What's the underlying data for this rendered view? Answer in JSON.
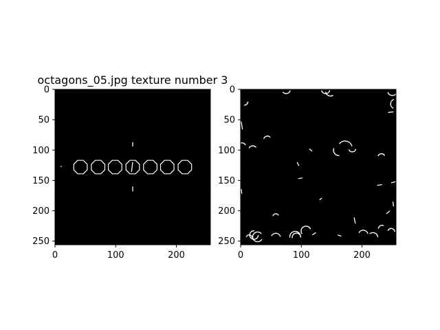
{
  "chart_data": [
    {
      "type": "image",
      "title": "octagons_05.jpg texture number 3",
      "xlim": [
        0,
        256
      ],
      "ylim": [
        256,
        0
      ],
      "xticks": [
        0,
        100,
        200
      ],
      "yticks": [
        0,
        50,
        100,
        150,
        200,
        250
      ],
      "background": "#000000",
      "foreground": "#ffffff",
      "octagons": [
        {
          "cx": 42,
          "cy": 128,
          "r": 12
        },
        {
          "cx": 71,
          "cy": 128,
          "r": 12
        },
        {
          "cx": 99,
          "cy": 128,
          "r": 12
        },
        {
          "cx": 128,
          "cy": 128,
          "r": 12
        },
        {
          "cx": 157,
          "cy": 128,
          "r": 12
        },
        {
          "cx": 185,
          "cy": 128,
          "r": 12
        },
        {
          "cx": 214,
          "cy": 128,
          "r": 12
        }
      ],
      "segments": [
        {
          "x1": 128,
          "y1": 87,
          "x2": 128,
          "y2": 94
        },
        {
          "x1": 128,
          "y1": 160,
          "x2": 128,
          "y2": 168
        },
        {
          "x1": 128,
          "y1": 120,
          "x2": 126,
          "y2": 136
        },
        {
          "x1": 9,
          "y1": 127,
          "x2": 11,
          "y2": 127
        }
      ]
    },
    {
      "type": "image",
      "title": "",
      "xlim": [
        0,
        256
      ],
      "ylim": [
        256,
        0
      ],
      "xticks": [
        0,
        100,
        200
      ],
      "yticks": [
        0,
        50,
        100,
        150,
        200,
        250
      ],
      "background": "#000000",
      "foreground": "#ffffff",
      "arcs": [
        [
          28,
          243,
          8,
          0.5,
          5.6
        ],
        [
          22,
          240,
          7,
          0,
          4.8
        ],
        [
          14,
          245,
          5,
          3.5,
          6.2
        ],
        [
          58,
          245,
          8,
          3.6,
          6.0
        ],
        [
          92,
          244,
          7,
          3.0,
          6.3
        ],
        [
          108,
          234,
          8,
          2.6,
          5.8
        ],
        [
          202,
          240,
          8,
          3.6,
          6.0
        ],
        [
          218,
          244,
          8,
          4.0,
          6.2
        ],
        [
          233,
          230,
          6,
          3.2,
          5.2
        ],
        [
          248,
          235,
          6,
          3.5,
          6.2
        ],
        [
          172,
          97,
          12,
          3.8,
          6.0
        ],
        [
          184,
          97,
          6,
          0.2,
          2.8
        ],
        [
          162,
          100,
          9,
          1.5,
          3.5
        ],
        [
          140,
          0,
          7,
          0.2,
          2.9
        ],
        [
          75,
          0,
          7,
          0.3,
          2.5
        ],
        [
          89,
          2,
          6,
          3.6,
          6.0
        ],
        [
          250,
          2,
          8,
          0.5,
          2.8
        ],
        [
          2,
          95,
          7,
          3.4,
          5.8
        ],
        [
          20,
          100,
          7,
          3.6,
          5.6
        ],
        [
          44,
          83,
          6,
          3.4,
          5.6
        ],
        [
          255,
          24,
          8,
          2.0,
          4.4
        ],
        [
          6,
          20,
          6,
          0.0,
          1.6
        ],
        [
          232,
          112,
          6,
          3.5,
          5.8
        ],
        [
          90,
          243,
          9,
          3.0,
          5.9
        ],
        [
          58,
          210,
          5,
          3.4,
          5.8
        ],
        [
          148,
          3,
          8,
          1.0,
          3.0
        ]
      ],
      "lines": [
        [
          95,
          147,
          102,
          146
        ],
        [
          225,
          158,
          233,
          157
        ],
        [
          243,
          38,
          252,
          37
        ],
        [
          248,
          154,
          255,
          152
        ],
        [
          187,
          211,
          189,
          221
        ],
        [
          1,
          53,
          3,
          66
        ],
        [
          1,
          164,
          2,
          172
        ],
        [
          251,
          185,
          252,
          193
        ],
        [
          93,
          120,
          96,
          126
        ],
        [
          118,
          240,
          124,
          236
        ],
        [
          160,
          240,
          166,
          242
        ],
        [
          240,
          205,
          246,
          200
        ],
        [
          113,
          98,
          118,
          102
        ],
        [
          130,
          182,
          134,
          179
        ]
      ]
    }
  ]
}
